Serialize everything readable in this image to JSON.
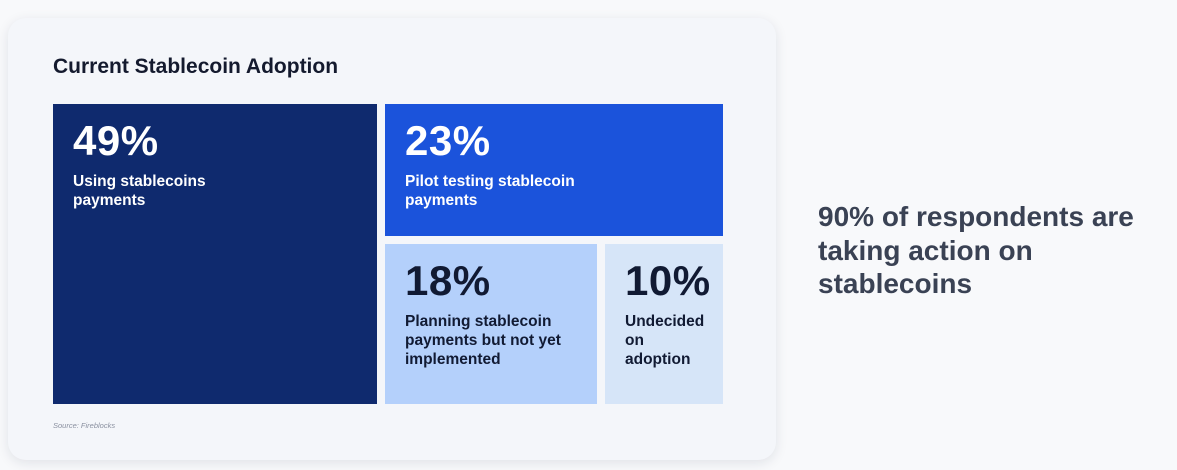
{
  "chart_data": {
    "type": "treemap",
    "title": "Current Stablecoin Adoption",
    "source": "Source: Fireblocks",
    "segments": [
      {
        "value_label": "49%",
        "value": 49,
        "label": "Using stablecoins\npayments",
        "color": "#0f2a6e",
        "text_color": "#ffffff"
      },
      {
        "value_label": "23%",
        "value": 23,
        "label": "Pilot testing stablecoin\npayments",
        "color": "#1b53db",
        "text_color": "#ffffff"
      },
      {
        "value_label": "18%",
        "value": 18,
        "label": "Planning stablecoin\npayments but not yet\nimplemented",
        "color": "#b4d0fb",
        "text_color": "#111a33"
      },
      {
        "value_label": "10%",
        "value": 10,
        "label": "Undecided\non adoption",
        "color": "#d6e5f8",
        "text_color": "#111a33"
      }
    ]
  },
  "callout": {
    "text": "90% of respondents are taking action on stablecoins"
  }
}
